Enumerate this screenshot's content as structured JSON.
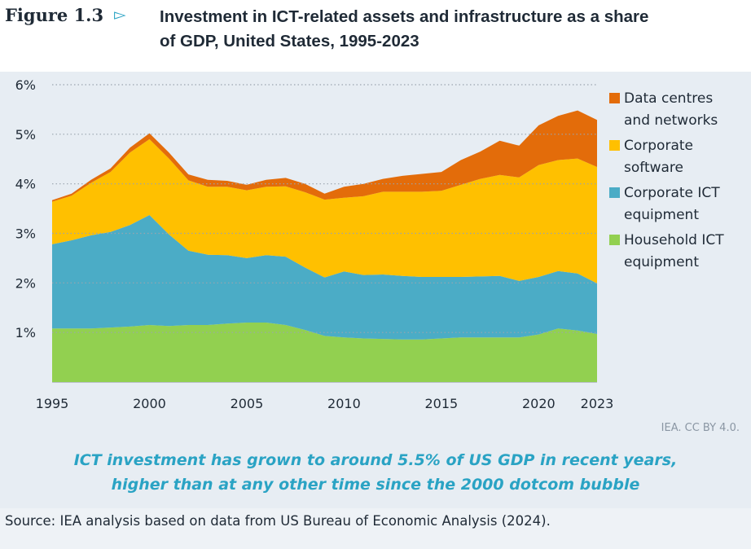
{
  "header": {
    "figure_label": "Figure 1.3",
    "title_line1": "Investment in ICT-related assets and infrastructure as a share",
    "title_line2": "of GDP, United States, 1995-2023"
  },
  "attribution": "IEA. CC BY 4.0.",
  "takeaway": {
    "line1": "ICT investment has grown to around 5.5% of US GDP in recent years,",
    "line2": "higher than at any other time since the 2000 dotcom bubble"
  },
  "source": "Source: IEA analysis based on data from US Bureau of Economic Analysis (2024).",
  "chart_data": {
    "type": "area",
    "stacked": true,
    "x": [
      1995,
      1996,
      1997,
      1998,
      1999,
      2000,
      2001,
      2002,
      2003,
      2004,
      2005,
      2006,
      2007,
      2008,
      2009,
      2010,
      2011,
      2012,
      2013,
      2014,
      2015,
      2016,
      2017,
      2018,
      2019,
      2020,
      2021,
      2022,
      2023
    ],
    "x_ticks": [
      "1995",
      "2000",
      "2005",
      "2010",
      "2015",
      "2020",
      "2023"
    ],
    "y_ticks": [
      "1%",
      "2%",
      "3%",
      "4%",
      "5%",
      "6%"
    ],
    "ylim": [
      0,
      6
    ],
    "grid": "dotted horizontal",
    "legend_position": "right",
    "series": [
      {
        "name": "Household ICT\nequipment",
        "color": "#92d050",
        "values": [
          1.08,
          1.08,
          1.08,
          1.1,
          1.12,
          1.15,
          1.13,
          1.15,
          1.15,
          1.18,
          1.2,
          1.2,
          1.15,
          1.05,
          0.93,
          0.9,
          0.88,
          0.87,
          0.86,
          0.86,
          0.88,
          0.9,
          0.9,
          0.9,
          0.9,
          0.96,
          1.08,
          1.04,
          0.97
        ]
      },
      {
        "name": "Corporate ICT\nequipment",
        "color": "#4bacc6",
        "values": [
          1.7,
          1.78,
          1.88,
          1.93,
          2.05,
          2.22,
          1.85,
          1.5,
          1.42,
          1.38,
          1.3,
          1.36,
          1.38,
          1.26,
          1.18,
          1.33,
          1.28,
          1.3,
          1.28,
          1.26,
          1.24,
          1.22,
          1.23,
          1.24,
          1.14,
          1.16,
          1.16,
          1.15,
          1.02
        ]
      },
      {
        "name": "Corporate\nsoftware",
        "color": "#ffc000",
        "values": [
          0.86,
          0.9,
          1.06,
          1.21,
          1.46,
          1.53,
          1.53,
          1.42,
          1.37,
          1.38,
          1.37,
          1.38,
          1.42,
          1.52,
          1.57,
          1.49,
          1.59,
          1.67,
          1.7,
          1.72,
          1.74,
          1.86,
          1.97,
          2.04,
          2.09,
          2.26,
          2.24,
          2.32,
          2.35
        ]
      },
      {
        "name": "Data centres\nand networks",
        "color": "#e36c0a",
        "values": [
          0.03,
          0.04,
          0.06,
          0.07,
          0.1,
          0.12,
          0.12,
          0.12,
          0.14,
          0.12,
          0.11,
          0.14,
          0.17,
          0.17,
          0.12,
          0.22,
          0.25,
          0.26,
          0.32,
          0.36,
          0.38,
          0.5,
          0.55,
          0.69,
          0.64,
          0.8,
          0.89,
          0.97,
          0.95
        ]
      }
    ]
  }
}
